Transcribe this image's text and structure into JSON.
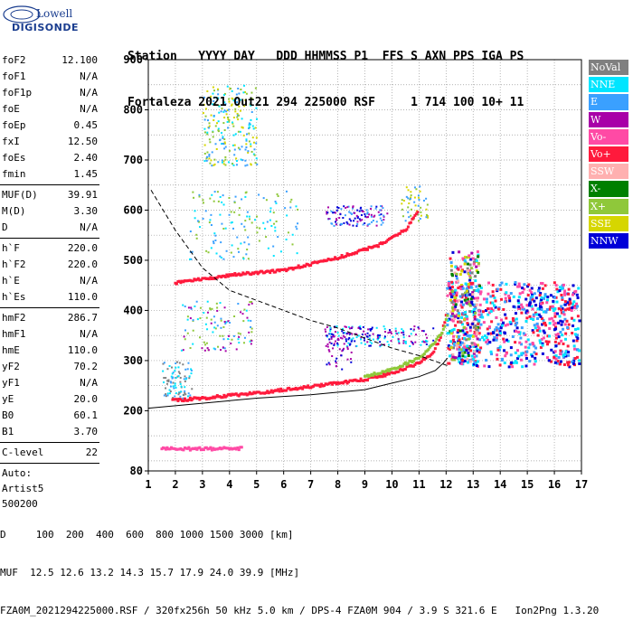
{
  "logo": {
    "line1": "Lowell",
    "line2": "DIGISONDE"
  },
  "header": {
    "row1": "Station   YYYY DAY   DDD HHMMSS P1  FFS S AXN PPS IGA PS",
    "row2": "Fortaleza 2021 Out21 294 225000 RSF     1 714 100 10+ 11"
  },
  "params": {
    "group1": [
      {
        "label": "foF2",
        "value": "12.100"
      },
      {
        "label": "foF1",
        "value": "N/A"
      },
      {
        "label": "foF1p",
        "value": "N/A"
      },
      {
        "label": "foE",
        "value": "N/A"
      },
      {
        "label": "foEp",
        "value": "0.45"
      },
      {
        "label": "fxI",
        "value": "12.50"
      },
      {
        "label": "foEs",
        "value": "2.40"
      },
      {
        "label": "fmin",
        "value": "1.45"
      }
    ],
    "group2": [
      {
        "label": "MUF(D)",
        "value": "39.91"
      },
      {
        "label": "M(D)",
        "value": "3.30"
      },
      {
        "label": "D",
        "value": "N/A"
      }
    ],
    "group3": [
      {
        "label": "h`F",
        "value": "220.0"
      },
      {
        "label": "h`F2",
        "value": "220.0"
      },
      {
        "label": "h`E",
        "value": "N/A"
      },
      {
        "label": "h`Es",
        "value": "110.0"
      }
    ],
    "group4": [
      {
        "label": "hmF2",
        "value": "286.7"
      },
      {
        "label": "hmF1",
        "value": "N/A"
      },
      {
        "label": "hmE",
        "value": "110.0"
      },
      {
        "label": "yF2",
        "value": "70.2"
      },
      {
        "label": "yF1",
        "value": "N/A"
      },
      {
        "label": "yE",
        "value": "20.0"
      },
      {
        "label": "B0",
        "value": "60.1"
      },
      {
        "label": "B1",
        "value": "3.70"
      }
    ],
    "group5": [
      {
        "label": "C-level",
        "value": "22"
      }
    ],
    "auto": [
      "Auto:",
      "Artist5",
      "500200"
    ]
  },
  "legend": [
    {
      "label": "NoVal",
      "color": "#808080"
    },
    {
      "label": "NNE",
      "color": "#00e5ff"
    },
    {
      "label": "E",
      "color": "#3aa0ff"
    },
    {
      "label": "W",
      "color": "#a800a8"
    },
    {
      "label": "Vo-",
      "color": "#ff4aa5"
    },
    {
      "label": "Vo+",
      "color": "#ff1a3c"
    },
    {
      "label": "SSW",
      "color": "#ffb0b0"
    },
    {
      "label": "X-",
      "color": "#008000"
    },
    {
      "label": "X+",
      "color": "#8fc83a"
    },
    {
      "label": "SSE",
      "color": "#d6d600"
    },
    {
      "label": "NNW",
      "color": "#0000d8"
    }
  ],
  "footer": {
    "line1": "D     100  200  400  600  800 1000 1500 3000 [km]",
    "line2": "MUF  12.5 12.6 13.2 14.3 15.7 17.9 24.0 39.9 [MHz]",
    "line3": "FZA0M_2021294225000.RSF / 320fx256h 50 kHz 5.0 km / DPS-4 FZA0M 904 / 3.9 S 321.6 E   Ion2Png 1.3.20"
  },
  "chart_data": {
    "type": "scatter",
    "xlim": [
      1,
      17
    ],
    "ylim": [
      80,
      900
    ],
    "x_ticks": [
      1,
      2,
      3,
      4,
      5,
      6,
      7,
      8,
      9,
      10,
      11,
      12,
      13,
      14,
      15,
      16,
      17
    ],
    "y_ticks": [
      80,
      200,
      300,
      400,
      500,
      600,
      700,
      800,
      900
    ],
    "grid": true,
    "grid_style": "dotted",
    "traces": [
      {
        "name": "F2-trace",
        "color": "#ff1a3c",
        "points": [
          [
            1.9,
            220
          ],
          [
            3,
            225
          ],
          [
            5,
            235
          ],
          [
            7,
            248
          ],
          [
            9,
            262
          ],
          [
            10,
            275
          ],
          [
            11,
            295
          ],
          [
            11.5,
            315
          ],
          [
            11.8,
            345
          ],
          [
            12.05,
            400
          ]
        ]
      },
      {
        "name": "F2-x-trace",
        "color": "#8fc83a",
        "points": [
          [
            9,
            268
          ],
          [
            10,
            282
          ],
          [
            11,
            305
          ],
          [
            11.5,
            330
          ],
          [
            11.9,
            360
          ],
          [
            12.1,
            400
          ]
        ]
      },
      {
        "name": "F2-second-hop",
        "color": "#ff1a3c",
        "points": [
          [
            2,
            455
          ],
          [
            4,
            470
          ],
          [
            6,
            480
          ],
          [
            8,
            505
          ],
          [
            9.5,
            530
          ],
          [
            10.5,
            560
          ],
          [
            11,
            600
          ]
        ]
      },
      {
        "name": "Es",
        "color": "#ff4aa5",
        "points": [
          [
            1.5,
            125
          ],
          [
            2.5,
            124
          ],
          [
            3.4,
            124
          ],
          [
            4.5,
            125
          ]
        ]
      }
    ],
    "profile_solid": [
      [
        1,
        205
      ],
      [
        3,
        215
      ],
      [
        5,
        225
      ],
      [
        7,
        232
      ],
      [
        9,
        242
      ],
      [
        10,
        255
      ],
      [
        11,
        268
      ],
      [
        11.6,
        280
      ],
      [
        11.9,
        295
      ],
      [
        12.05,
        305
      ]
    ],
    "profile_dashed": [
      [
        1.1,
        640
      ],
      [
        2,
        560
      ],
      [
        3,
        485
      ],
      [
        4,
        440
      ],
      [
        5,
        420
      ],
      [
        6,
        400
      ],
      [
        7,
        380
      ],
      [
        8,
        365
      ],
      [
        9,
        345
      ],
      [
        10,
        325
      ],
      [
        11,
        310
      ],
      [
        12.05,
        290
      ]
    ]
  }
}
